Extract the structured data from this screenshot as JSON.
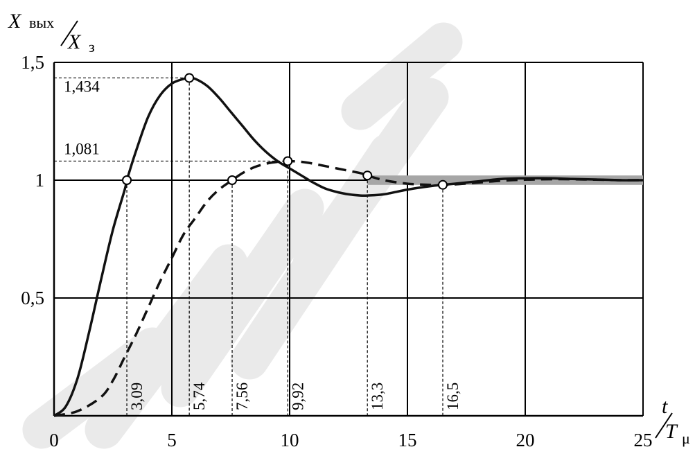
{
  "chart_data": {
    "type": "line",
    "xlabel": {
      "num": "t",
      "den": "T",
      "den_sub": "μ"
    },
    "ylabel": {
      "main": "X",
      "main_sub": "вых",
      "den": "X",
      "den_sub": "з"
    },
    "xlim": [
      0,
      25
    ],
    "ylim": [
      0,
      1.5
    ],
    "x_ticks": [
      0,
      5,
      10,
      15,
      20,
      25
    ],
    "x_tick_labels": [
      "0",
      "5",
      "10",
      "15",
      "20",
      "25"
    ],
    "y_ticks": [
      0.5,
      1,
      1.5
    ],
    "y_tick_labels": [
      "0,5",
      "1",
      "1,5"
    ],
    "grid": true,
    "series": [
      {
        "style": "solid",
        "color": "#111111",
        "x": [
          0,
          0.5,
          1,
          1.5,
          2,
          2.5,
          3,
          3.09,
          3.5,
          4,
          4.5,
          5,
          5.5,
          5.74,
          6,
          6.5,
          7,
          7.5,
          8,
          8.5,
          9,
          9.5,
          10,
          10.5,
          11,
          11.5,
          12,
          12.5,
          13,
          13.3,
          14,
          15,
          16,
          16.5,
          17,
          18,
          19,
          20,
          21,
          22,
          23,
          24,
          25
        ],
        "y": [
          0,
          0.04,
          0.16,
          0.36,
          0.58,
          0.79,
          0.96,
          1.0,
          1.13,
          1.27,
          1.36,
          1.41,
          1.43,
          1.434,
          1.43,
          1.4,
          1.35,
          1.29,
          1.23,
          1.17,
          1.12,
          1.08,
          1.05,
          1.02,
          0.99,
          0.965,
          0.95,
          0.94,
          0.935,
          0.935,
          0.94,
          0.96,
          0.975,
          0.98,
          0.985,
          0.995,
          1.005,
          1.008,
          1.008,
          1.005,
          1.003,
          1.0,
          1.0
        ]
      },
      {
        "style": "dashed",
        "color": "#111111",
        "x": [
          0,
          1,
          2,
          2.5,
          3,
          3.5,
          4,
          4.5,
          5,
          5.5,
          6,
          6.5,
          7,
          7.56,
          8,
          8.5,
          9,
          9.5,
          9.92,
          10.5,
          11,
          12,
          13,
          13.3,
          14,
          15,
          16,
          16.5,
          17,
          18,
          19,
          20,
          21,
          22,
          23,
          24,
          25
        ],
        "y": [
          0,
          0.02,
          0.08,
          0.15,
          0.25,
          0.35,
          0.46,
          0.57,
          0.67,
          0.77,
          0.84,
          0.91,
          0.96,
          1.0,
          1.03,
          1.055,
          1.07,
          1.078,
          1.081,
          1.078,
          1.07,
          1.05,
          1.03,
          1.02,
          1.0,
          0.985,
          0.98,
          0.98,
          0.982,
          0.99,
          0.998,
          1.002,
          1.004,
          1.004,
          1.002,
          1.0,
          1.0
        ]
      }
    ],
    "tolerance_band": {
      "x": [
        13.3,
        25
      ],
      "y": [
        0.98,
        1.02
      ],
      "color": "#a6a6a6"
    },
    "markers": [
      {
        "x": 3.09,
        "y": 1.0
      },
      {
        "x": 5.74,
        "y": 1.434
      },
      {
        "x": 7.56,
        "y": 1.0
      },
      {
        "x": 9.92,
        "y": 1.081
      },
      {
        "x": 13.3,
        "y": 1.02
      },
      {
        "x": 16.5,
        "y": 0.98
      }
    ],
    "vertical_annotations": [
      {
        "x": 3.09,
        "y_top": 1.0,
        "label": "3,09"
      },
      {
        "x": 5.74,
        "y_top": 1.434,
        "label": "5,74"
      },
      {
        "x": 7.56,
        "y_top": 1.0,
        "label": "7,56"
      },
      {
        "x": 9.92,
        "y_top": 1.081,
        "label": "9,92"
      },
      {
        "x": 13.3,
        "y_top": 1.02,
        "label": "13,3"
      },
      {
        "x": 16.5,
        "y_top": 0.98,
        "label": "16,5"
      }
    ],
    "horizontal_annotations": [
      {
        "y": 1.434,
        "x_end": 5.74,
        "label": "1,434"
      },
      {
        "y": 1.081,
        "x_end": 9.92,
        "label": "1,081"
      }
    ]
  },
  "watermark": {
    "color": "#eaeaea"
  }
}
